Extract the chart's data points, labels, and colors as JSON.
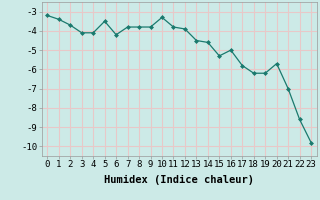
{
  "x": [
    0,
    1,
    2,
    3,
    4,
    5,
    6,
    7,
    8,
    9,
    10,
    11,
    12,
    13,
    14,
    15,
    16,
    17,
    18,
    19,
    20,
    21,
    22,
    23
  ],
  "y": [
    -3.2,
    -3.4,
    -3.7,
    -4.1,
    -4.1,
    -3.5,
    -4.2,
    -3.8,
    -3.8,
    -3.8,
    -3.3,
    -3.8,
    -3.9,
    -4.5,
    -4.6,
    -5.3,
    -5.0,
    -5.8,
    -6.2,
    -6.2,
    -5.7,
    -7.0,
    -8.6,
    -9.8
  ],
  "line_color": "#1a7a6e",
  "marker": "D",
  "marker_size": 2,
  "bg_color": "#cceae7",
  "grid_color": "#e8c8c8",
  "xlabel": "Humidex (Indice chaleur)",
  "ylim": [
    -10.5,
    -2.5
  ],
  "xlim": [
    -0.5,
    23.5
  ],
  "yticks": [
    -3,
    -4,
    -5,
    -6,
    -7,
    -8,
    -9,
    -10
  ],
  "xticks": [
    0,
    1,
    2,
    3,
    4,
    5,
    6,
    7,
    8,
    9,
    10,
    11,
    12,
    13,
    14,
    15,
    16,
    17,
    18,
    19,
    20,
    21,
    22,
    23
  ],
  "xlabel_fontsize": 7.5,
  "tick_fontsize": 6.5
}
